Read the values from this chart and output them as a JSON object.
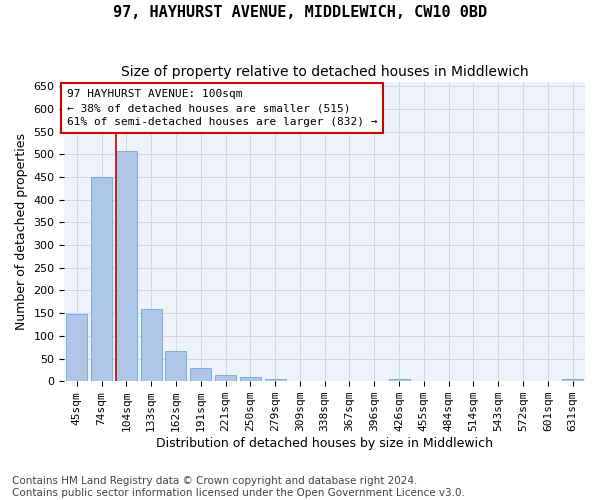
{
  "title": "97, HAYHURST AVENUE, MIDDLEWICH, CW10 0BD",
  "subtitle": "Size of property relative to detached houses in Middlewich",
  "xlabel": "Distribution of detached houses by size in Middlewich",
  "ylabel": "Number of detached properties",
  "categories": [
    "45sqm",
    "74sqm",
    "104sqm",
    "133sqm",
    "162sqm",
    "191sqm",
    "221sqm",
    "250sqm",
    "279sqm",
    "309sqm",
    "338sqm",
    "367sqm",
    "396sqm",
    "426sqm",
    "455sqm",
    "484sqm",
    "514sqm",
    "543sqm",
    "572sqm",
    "601sqm",
    "631sqm"
  ],
  "values": [
    147,
    450,
    507,
    158,
    66,
    30,
    14,
    9,
    5,
    0,
    0,
    0,
    0,
    5,
    0,
    0,
    0,
    0,
    0,
    0,
    5
  ],
  "bar_color": "#aec6e8",
  "bar_edge_color": "#5b9bd5",
  "highlight_index": 2,
  "highlight_line_color": "#cc0000",
  "annotation_text": "97 HAYHURST AVENUE: 100sqm\n← 38% of detached houses are smaller (515)\n61% of semi-detached houses are larger (832) →",
  "annotation_box_color": "#ffffff",
  "annotation_box_edge_color": "#cc0000",
  "ylim": [
    0,
    660
  ],
  "yticks": [
    0,
    50,
    100,
    150,
    200,
    250,
    300,
    350,
    400,
    450,
    500,
    550,
    600,
    650
  ],
  "grid_color": "#d0d8e8",
  "background_color": "#eef2fa",
  "footer_text": "Contains HM Land Registry data © Crown copyright and database right 2024.\nContains public sector information licensed under the Open Government Licence v3.0.",
  "title_fontsize": 11,
  "subtitle_fontsize": 10,
  "xlabel_fontsize": 9,
  "ylabel_fontsize": 9,
  "tick_fontsize": 8,
  "annotation_fontsize": 8,
  "footer_fontsize": 7.5
}
